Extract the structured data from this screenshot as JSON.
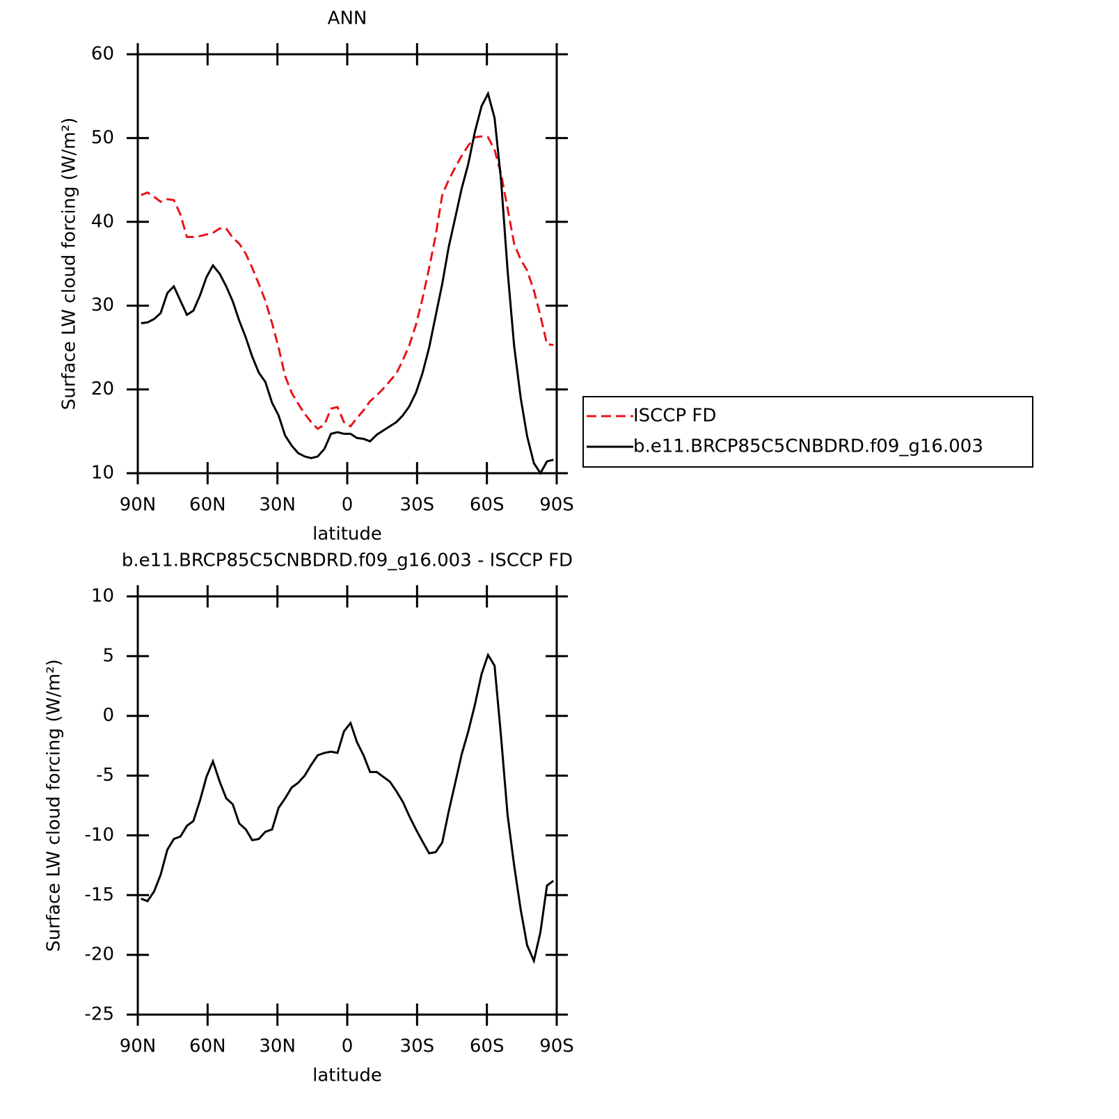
{
  "chart_data": [
    {
      "type": "line",
      "title": "ANN",
      "xlabel": "latitude",
      "ylabel": "Surface LW cloud forcing (W/m²)",
      "x": [
        88.6,
        85.8,
        83.0,
        80.2,
        77.3,
        74.5,
        71.7,
        68.9,
        66.1,
        63.3,
        60.5,
        57.7,
        54.8,
        52.0,
        49.2,
        46.4,
        43.6,
        40.8,
        38.0,
        35.2,
        32.3,
        29.5,
        26.7,
        23.9,
        21.1,
        18.3,
        15.5,
        12.7,
        9.8,
        7.0,
        4.2,
        1.4,
        -1.4,
        -4.2,
        -7.0,
        -9.8,
        -12.7,
        -15.5,
        -18.3,
        -21.1,
        -23.9,
        -26.7,
        -29.5,
        -32.3,
        -35.2,
        -38.0,
        -40.8,
        -43.6,
        -46.4,
        -49.2,
        -52.0,
        -54.8,
        -57.7,
        -60.5,
        -63.3,
        -66.1,
        -68.9,
        -71.7,
        -74.5,
        -77.3,
        -80.2,
        -83.0,
        -85.8,
        -88.6
      ],
      "series": [
        {
          "name": "ISCCP FD",
          "color": "#e8141a",
          "linestyle": "dashed",
          "values": [
            43.2,
            43.5,
            43.0,
            42.4,
            42.7,
            42.6,
            40.9,
            38.2,
            38.2,
            38.3,
            38.5,
            38.7,
            39.2,
            39.2,
            38.1,
            37.4,
            36.2,
            34.5,
            32.6,
            30.6,
            27.9,
            25.0,
            21.6,
            19.6,
            18.3,
            17.1,
            16.1,
            15.3,
            15.8,
            17.7,
            17.9,
            16.1,
            15.6,
            16.6,
            17.5,
            18.6,
            19.3,
            20.1,
            21.0,
            21.9,
            23.5,
            25.3,
            27.7,
            30.8,
            34.5,
            38.4,
            43.2,
            45.0,
            46.5,
            47.9,
            49.1,
            50.1,
            50.2,
            50.1,
            48.6,
            45.7,
            41.6,
            37.4,
            35.5,
            34.2,
            31.8,
            28.8,
            25.4,
            25.3
          ]
        },
        {
          "name": "b.e11.BRCP85C5CNBDRD.f09_g16.003",
          "color": "#000000",
          "linestyle": "solid",
          "values": [
            27.9,
            28.0,
            28.4,
            29.1,
            31.5,
            32.3,
            30.6,
            28.9,
            29.4,
            31.2,
            33.4,
            34.8,
            33.8,
            32.3,
            30.5,
            28.2,
            26.2,
            23.9,
            22.0,
            20.9,
            18.4,
            16.9,
            14.5,
            13.3,
            12.4,
            12.0,
            11.8,
            12.0,
            12.9,
            14.7,
            14.9,
            14.7,
            14.7,
            14.2,
            14.1,
            13.8,
            14.6,
            15.1,
            15.6,
            16.1,
            16.9,
            18.0,
            19.6,
            21.9,
            25.0,
            28.8,
            32.6,
            37.0,
            40.5,
            44.0,
            46.9,
            50.7,
            53.8,
            55.3,
            52.4,
            44.9,
            34.2,
            25.2,
            19.0,
            14.4,
            11.2,
            10.0,
            11.4,
            11.6
          ]
        }
      ],
      "xlim": [
        90,
        -90
      ],
      "xticks": [
        {
          "value": 90,
          "label": "90N"
        },
        {
          "value": 60,
          "label": "60N"
        },
        {
          "value": 30,
          "label": "30N"
        },
        0,
        {
          "value": -30,
          "label": "30S"
        },
        {
          "value": -60,
          "label": "60S"
        },
        {
          "value": -90,
          "label": "90S"
        }
      ],
      "ylim": [
        10,
        60
      ],
      "yticks": [
        10,
        20,
        30,
        40,
        50,
        60
      ],
      "legend": "right"
    },
    {
      "type": "line",
      "title": "b.e11.BRCP85C5CNBDRD.f09_g16.003 - ISCCP FD",
      "xlabel": "latitude",
      "ylabel": "Surface LW cloud forcing (W/m²)",
      "x": [
        88.6,
        85.8,
        83.0,
        80.2,
        77.3,
        74.5,
        71.7,
        68.9,
        66.1,
        63.3,
        60.5,
        57.7,
        54.8,
        52.0,
        49.2,
        46.4,
        43.6,
        40.8,
        38.0,
        35.2,
        32.3,
        29.5,
        26.7,
        23.9,
        21.1,
        18.3,
        15.5,
        12.7,
        9.8,
        7.0,
        4.2,
        1.4,
        -1.4,
        -4.2,
        -7.0,
        -9.8,
        -12.7,
        -15.5,
        -18.3,
        -21.1,
        -23.9,
        -26.7,
        -29.5,
        -32.3,
        -35.2,
        -38.0,
        -40.8,
        -43.6,
        -46.4,
        -49.2,
        -52.0,
        -54.8,
        -57.7,
        -60.5,
        -63.3,
        -66.1,
        -68.9,
        -71.7,
        -74.5,
        -77.3,
        -80.2,
        -83.0,
        -85.8,
        -88.6
      ],
      "series": [
        {
          "color": "#000000",
          "linestyle": "solid",
          "values": [
            -15.3,
            -15.5,
            -14.7,
            -13.3,
            -11.2,
            -10.3,
            -10.1,
            -9.2,
            -8.8,
            -7.1,
            -5.1,
            -3.8,
            -5.5,
            -6.9,
            -7.4,
            -9.0,
            -9.5,
            -10.4,
            -10.3,
            -9.7,
            -9.5,
            -7.7,
            -6.9,
            -6.0,
            -5.6,
            -5.0,
            -4.1,
            -3.3,
            -3.1,
            -3.0,
            -3.1,
            -1.3,
            -0.6,
            -2.2,
            -3.3,
            -4.7,
            -4.7,
            -5.1,
            -5.5,
            -6.3,
            -7.2,
            -8.4,
            -9.5,
            -10.5,
            -11.5,
            -11.4,
            -10.6,
            -8.0,
            -5.6,
            -3.2,
            -1.3,
            0.9,
            3.5,
            5.1,
            4.2,
            -1.8,
            -8.3,
            -12.5,
            -16.2,
            -19.2,
            -20.5,
            -18.1,
            -14.2,
            -13.8
          ]
        }
      ],
      "xlim": [
        90,
        -90
      ],
      "xticks": [
        {
          "value": 90,
          "label": "90N"
        },
        {
          "value": 60,
          "label": "60N"
        },
        {
          "value": 30,
          "label": "30N"
        },
        0,
        {
          "value": -30,
          "label": "30S"
        },
        {
          "value": -60,
          "label": "60S"
        },
        {
          "value": -90,
          "label": "90S"
        }
      ],
      "ylim": [
        -25,
        10
      ],
      "yticks": [
        -25,
        -20,
        -15,
        -10,
        -5,
        0,
        5,
        10
      ]
    }
  ]
}
